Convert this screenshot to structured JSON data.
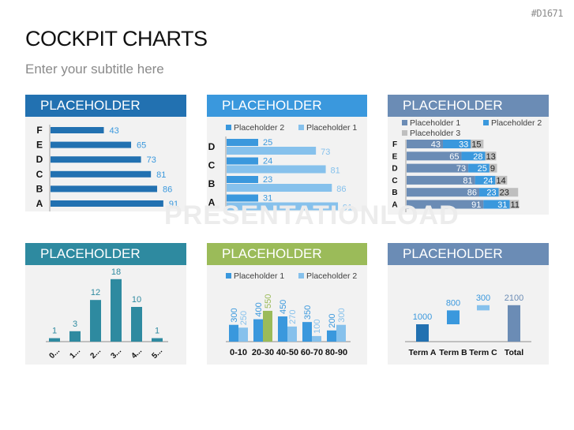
{
  "header": {
    "code": "#D1671",
    "title": "COCKPIT CHARTS",
    "subtitle": "Enter your subtitle here"
  },
  "watermark": "PRESENTATIONLOAD",
  "colors": {
    "dark_blue": "#2271b1",
    "bright_blue": "#3a98dd",
    "light_blue": "#86c1ec",
    "slate_blue": "#6b8cb5",
    "teal": "#2e8aa0",
    "green": "#9bbb59",
    "gray": "#bfbfbf",
    "panel_bg": "#f2f2f2"
  },
  "panels": [
    {
      "title": "PLACEHOLDER",
      "header_color": "#2271b1"
    },
    {
      "title": "PLACEHOLDER",
      "header_color": "#3a98dd"
    },
    {
      "title": "PLACEHOLDER",
      "header_color": "#6b8cb5"
    },
    {
      "title": "PLACEHOLDER",
      "header_color": "#2e8aa0"
    },
    {
      "title": "PLACEHOLDER",
      "header_color": "#9bbb59"
    },
    {
      "title": "PLACEHOLDER",
      "header_color": "#6b8cb5"
    }
  ],
  "chart_data": [
    {
      "type": "bar",
      "orientation": "horizontal",
      "title": "PLACEHOLDER",
      "categories": [
        "F",
        "E",
        "D",
        "C",
        "B",
        "A"
      ],
      "values": [
        43,
        65,
        73,
        81,
        86,
        91
      ],
      "data_labels": true,
      "grid": false
    },
    {
      "type": "bar",
      "orientation": "horizontal",
      "title": "PLACEHOLDER",
      "categories": [
        "D",
        "C",
        "B",
        "A"
      ],
      "legend": [
        "Placeholder 2",
        "Placeholder 1"
      ],
      "legend_position": "top",
      "series": [
        {
          "name": "Placeholder 2",
          "values": [
            25,
            24,
            23,
            31
          ]
        },
        {
          "name": "Placeholder 1",
          "values": [
            73,
            81,
            86,
            91
          ]
        }
      ],
      "data_labels": true
    },
    {
      "type": "bar",
      "orientation": "horizontal",
      "stacked": true,
      "title": "PLACEHOLDER",
      "categories": [
        "F",
        "E",
        "D",
        "C",
        "B",
        "A"
      ],
      "legend": [
        "Placeholder 1",
        "Placeholder 2",
        "Placeholder 3"
      ],
      "legend_position": "top",
      "series": [
        {
          "name": "Placeholder 1",
          "values": [
            43,
            65,
            73,
            81,
            86,
            91
          ]
        },
        {
          "name": "Placeholder 2",
          "values": [
            33,
            28,
            25,
            24,
            23,
            31
          ]
        },
        {
          "name": "Placeholder 3",
          "values": [
            15,
            13,
            9,
            14,
            23,
            11
          ]
        }
      ],
      "data_labels": true
    },
    {
      "type": "bar",
      "orientation": "vertical",
      "title": "PLACEHOLDER",
      "categories": [
        "0...",
        "1...",
        "2...",
        "3...",
        "4...",
        "5..."
      ],
      "values": [
        1,
        3,
        12,
        18,
        10,
        1
      ],
      "data_labels": true,
      "xtick_rotation": -45
    },
    {
      "type": "bar",
      "orientation": "vertical",
      "title": "PLACEHOLDER",
      "categories": [
        "0-10",
        "20-30",
        "40-50",
        "60-70",
        "80-90"
      ],
      "legend": [
        "Placeholder 1",
        "Placeholder 2"
      ],
      "legend_position": "top",
      "series": [
        {
          "name": "Placeholder 1",
          "values": [
            300,
            400,
            450,
            350,
            200
          ]
        },
        {
          "name": "Placeholder 2",
          "values": [
            250,
            550,
            270,
            100,
            300
          ]
        }
      ],
      "highlight": {
        "series": "Placeholder 2",
        "category": "20-30",
        "color": "#9bbb59"
      },
      "data_labels": true,
      "data_label_rotation": -90
    },
    {
      "type": "bar",
      "subtype": "waterfall",
      "title": "PLACEHOLDER",
      "categories": [
        "Term A",
        "Term B",
        "Term C",
        "Total"
      ],
      "values": [
        1000,
        800,
        300,
        2100
      ],
      "data_labels": true
    }
  ]
}
